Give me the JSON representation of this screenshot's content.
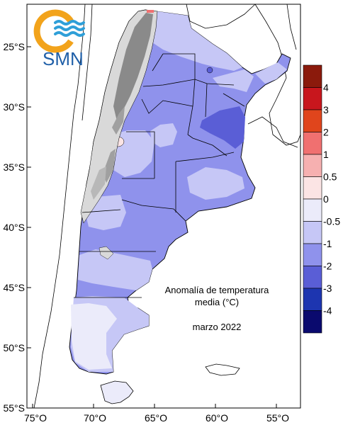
{
  "logo": {
    "text": "SMN",
    "colors": {
      "sun": "#f2a31b",
      "waves": "#2f9fd8",
      "text": "#1f5fa8"
    }
  },
  "axes": {
    "y_ticks": [
      "25°S",
      "30°S",
      "35°S",
      "40°S",
      "45°S",
      "50°S",
      "55°S"
    ],
    "x_ticks": [
      "75°O",
      "70°O",
      "65°O",
      "60°O",
      "55°O"
    ]
  },
  "annotation": {
    "line1": "Anomalía de temperatura",
    "line2": "media (°C)",
    "line3": "marzo 2022"
  },
  "colorbar": {
    "labels": [
      "4",
      "3",
      "2",
      "1",
      "0.5",
      "0",
      "-0.5",
      "-1",
      "-2",
      "-3",
      "-4"
    ],
    "colors": [
      "#8b1a0c",
      "#c8161d",
      "#e0451c",
      "#f07070",
      "#f6b0b0",
      "#fbe4e4",
      "#ebebfa",
      "#c6c7f6",
      "#8f92ec",
      "#5a5ed6",
      "#1d35b0",
      "#0a0a6e"
    ]
  },
  "map_colors": {
    "andes_light": "#d9d9d9",
    "andes_dark": "#8a8a8a",
    "anom_pos": "#fbe4e4",
    "anom_0": "#ebebfa",
    "anom_n05": "#c6c7f6",
    "anom_n1": "#8f92ec",
    "anom_n2": "#5a5ed6"
  }
}
